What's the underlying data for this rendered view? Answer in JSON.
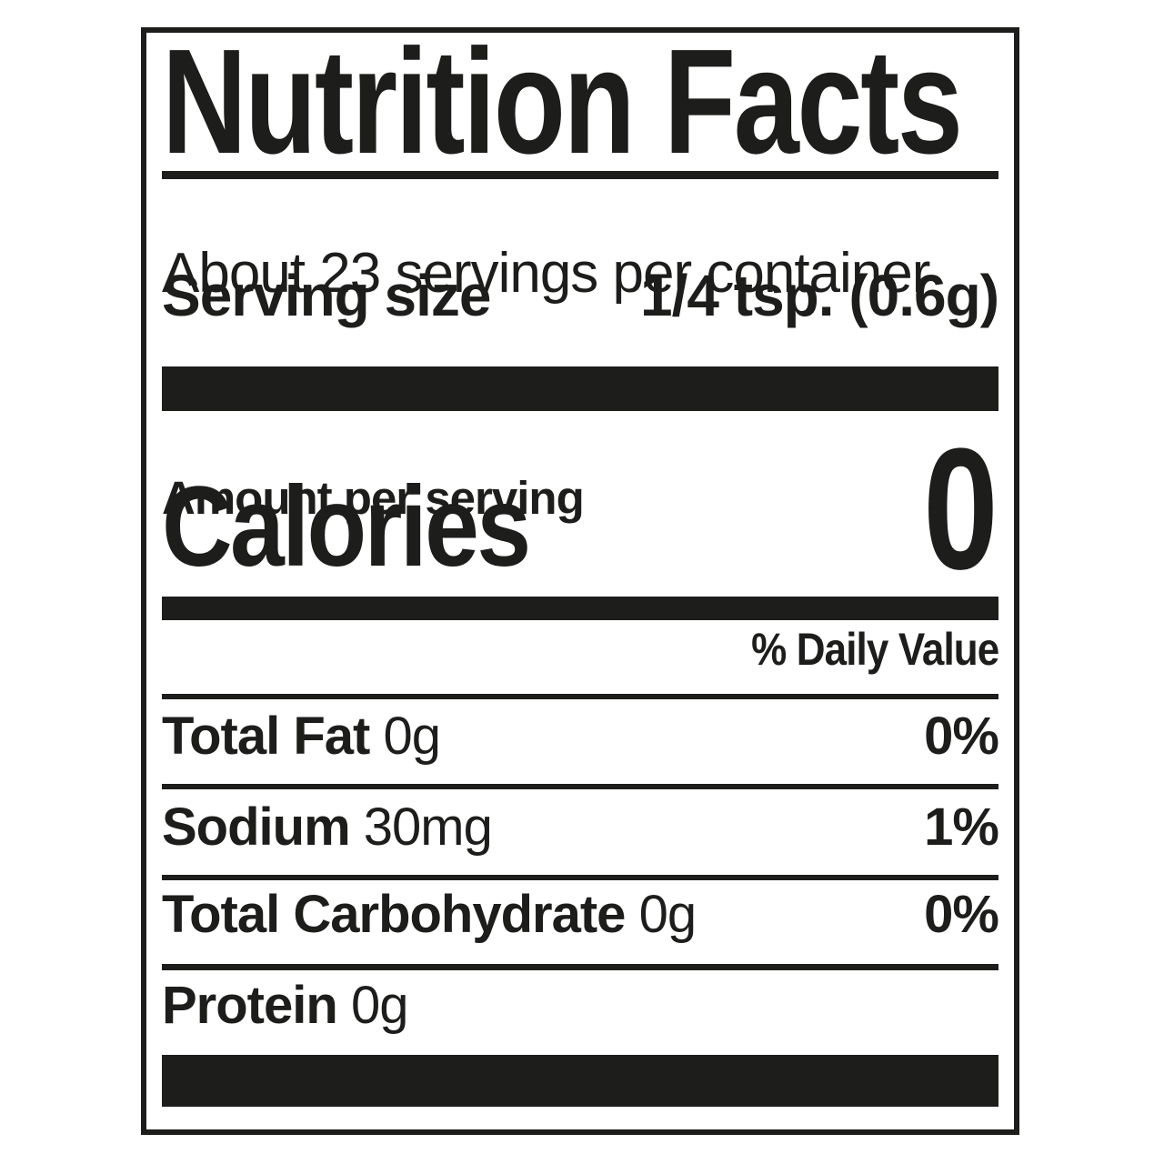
{
  "label": {
    "title": "Nutrition Facts",
    "servings_per_container": "About 23 servings per container",
    "serving_size_label": "Serving size",
    "serving_size_value": "1/4 tsp. (0.6g)",
    "amount_per_serving": "Amount per serving",
    "calories_label": "Calories",
    "calories_value": "0",
    "daily_value_header": "% Daily Value",
    "rows": [
      {
        "name": "Total Fat",
        "amount": "0g",
        "dv": "0%"
      },
      {
        "name": "Sodium",
        "amount": "30mg",
        "dv": "1%"
      },
      {
        "name": "Total Carbohydrate",
        "amount": "0g",
        "dv": "0%"
      },
      {
        "name": "Protein",
        "amount": "0g",
        "dv": ""
      }
    ],
    "colors": {
      "ink": "#1d1d1b",
      "background": "#ffffff"
    }
  }
}
